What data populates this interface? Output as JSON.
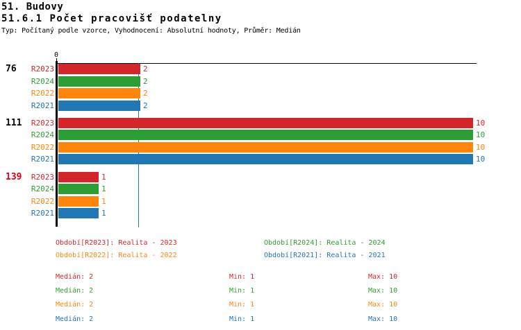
{
  "page": {
    "title_line1": "51. Budovy",
    "title_line2": "51.6.1 Počet pracovišť podatelny",
    "subtitle": "Typ: Počítaný podle vzorce, Vyhodnocení: Absolutní hodnoty, Průměr: Medián"
  },
  "chart_data": {
    "type": "bar",
    "orientation": "horizontal",
    "title": "51.6.1 Počet pracovišť podatelny",
    "xlabel": "",
    "ylabel": "",
    "xlim": [
      0,
      10
    ],
    "x_tick_labels": [
      "0"
    ],
    "grid": false,
    "median_reference_line": 2,
    "series": [
      {
        "name": "R2023",
        "color": "#d3262b",
        "legend_label": "Období[R2023]: Realita - 2023"
      },
      {
        "name": "R2024",
        "color": "#2d9e33",
        "legend_label": "Období[R2024]: Realita - 2024"
      },
      {
        "name": "R2022",
        "color": "#ff860d",
        "legend_label": "Období[R2022]: Realita - 2022"
      },
      {
        "name": "R2021",
        "color": "#2176b4",
        "legend_label": "Období[R2021]: Realita - 2021"
      }
    ],
    "groups": [
      {
        "label": "76",
        "label_color": "#000000",
        "values": [
          2,
          2,
          2,
          2
        ]
      },
      {
        "label": "111",
        "label_color": "#000000",
        "values": [
          10,
          10,
          10,
          10
        ]
      },
      {
        "label": "139",
        "label_color": "#e00007",
        "values": [
          1,
          1,
          1,
          1
        ]
      }
    ],
    "legend_position": "bottom-two-columns",
    "stat_labels": {
      "median": "Medián",
      "min": "Min",
      "max": "Max"
    },
    "stats": [
      {
        "series": "R2023",
        "median": 2,
        "min": 1,
        "max": 10
      },
      {
        "series": "R2024",
        "median": 2,
        "min": 1,
        "max": 10
      },
      {
        "series": "R2022",
        "median": 2,
        "min": 1,
        "max": 10
      },
      {
        "series": "R2021",
        "median": 2,
        "min": 1,
        "max": 10
      }
    ],
    "axis_zero_label": "0"
  }
}
